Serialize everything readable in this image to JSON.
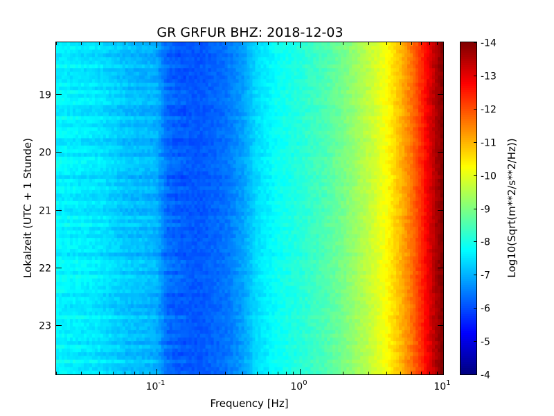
{
  "chart_data": {
    "type": "heatmap",
    "title": "GR GRFUR BHZ: 2018-12-03",
    "xlabel": "Frequency [Hz]",
    "ylabel": "Lokalzeit (UTC + 1 Stunde)",
    "x_scale": "log",
    "xlim": [
      0.02,
      10
    ],
    "ylim": [
      18.1,
      23.85
    ],
    "y_direction": "inverted",
    "x_ticks": [
      {
        "base": "10",
        "exp": "-1",
        "value": 0.1
      },
      {
        "base": "10",
        "exp": "0",
        "value": 1
      },
      {
        "base": "10",
        "exp": "1",
        "value": 10
      }
    ],
    "y_ticks": [
      {
        "label": "19",
        "value": 19
      },
      {
        "label": "20",
        "value": 20
      },
      {
        "label": "21",
        "value": 21
      },
      {
        "label": "22",
        "value": 22
      },
      {
        "label": "23",
        "value": 23
      }
    ],
    "colorbar": {
      "label": "Log10(Sqrt(m**2/s**2/Hz))",
      "range": [
        -14,
        -4
      ],
      "ticks": [
        "-4",
        "-5",
        "-6",
        "-7",
        "-8",
        "-9",
        "-10",
        "-11",
        "-12",
        "-13",
        "-14"
      ],
      "colormap": "jet"
    },
    "spectrum_profile": {
      "frequency_hz": [
        0.02,
        0.04,
        0.06,
        0.1,
        0.12,
        0.15,
        0.2,
        0.3,
        0.4,
        0.5,
        0.7,
        1.0,
        1.5,
        2.0,
        3.0,
        4.0,
        5.0,
        6.0,
        7.0,
        8.0,
        9.0,
        10.0
      ],
      "level": [
        -7.7,
        -7.5,
        -7.2,
        -7.0,
        -6.3,
        -6.15,
        -6.1,
        -6.35,
        -6.8,
        -7.4,
        -7.85,
        -8.1,
        -8.5,
        -8.9,
        -9.6,
        -10.2,
        -10.9,
        -11.6,
        -12.3,
        -13.0,
        -13.6,
        -14.0
      ]
    }
  }
}
